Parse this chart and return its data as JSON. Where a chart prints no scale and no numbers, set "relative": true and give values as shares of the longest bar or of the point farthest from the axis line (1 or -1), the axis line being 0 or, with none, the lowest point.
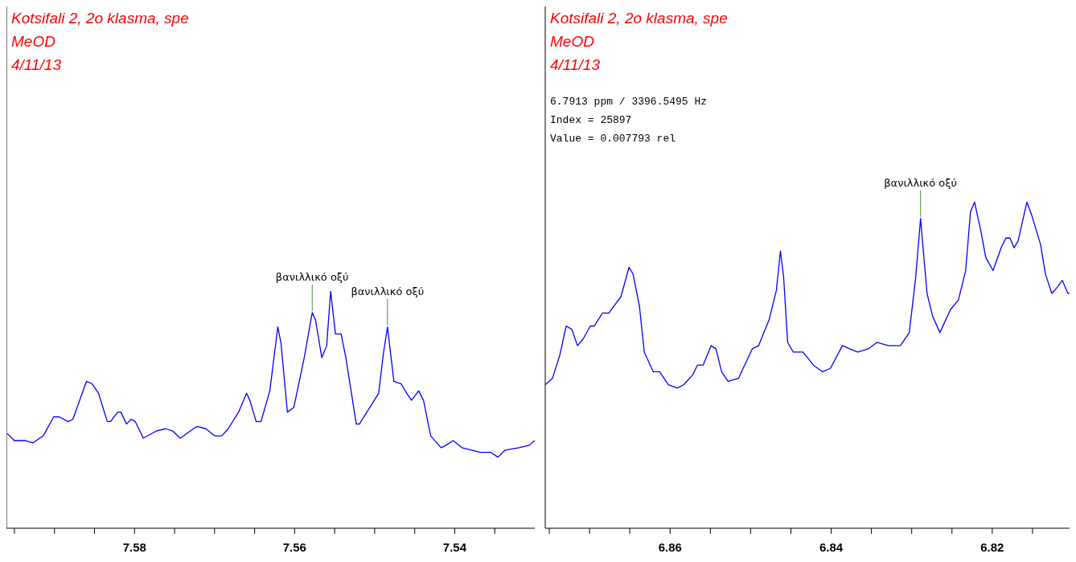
{
  "chart_data": [
    {
      "type": "line",
      "title": "Kotsifali 2, 2o klasma, spe",
      "subtitle": "MeOD\n4/11/13",
      "relative": true,
      "x": [
        7.5959,
        7.595,
        7.5937,
        7.5927,
        7.5914,
        7.5901,
        7.5894,
        7.5883,
        7.5877,
        7.586,
        7.5853,
        7.5845,
        7.5834,
        7.583,
        7.5821,
        7.5817,
        7.581,
        7.5804,
        7.5799,
        7.5789,
        7.5773,
        7.5761,
        7.5752,
        7.5743,
        7.5722,
        7.5711,
        7.57,
        7.5691,
        7.5683,
        7.567,
        7.566,
        7.5656,
        7.5648,
        7.5642,
        7.5631,
        7.5621,
        7.5617,
        7.5609,
        7.5601,
        7.5588,
        7.5578,
        7.5574,
        7.5566,
        7.556,
        7.5555,
        7.5549,
        7.5542,
        7.5536,
        7.5523,
        7.5519,
        7.5495,
        7.5489,
        7.5484,
        7.5476,
        7.5467,
        7.546,
        7.5454,
        7.5445,
        7.5439,
        7.543,
        7.5417,
        7.5411,
        7.5402,
        7.5391,
        7.5368,
        7.5355,
        7.5346,
        7.5337,
        7.532,
        7.5307,
        7.53
      ],
      "series": [
        {
          "color": "#0000ff",
          "values": [
            0.4,
            0.37,
            0.37,
            0.36,
            0.39,
            0.47,
            0.47,
            0.45,
            0.46,
            0.62,
            0.61,
            0.57,
            0.45,
            0.45,
            0.49,
            0.49,
            0.44,
            0.46,
            0.45,
            0.38,
            0.41,
            0.42,
            0.41,
            0.38,
            0.43,
            0.42,
            0.39,
            0.39,
            0.42,
            0.49,
            0.57,
            0.54,
            0.45,
            0.45,
            0.58,
            0.85,
            0.78,
            0.49,
            0.51,
            0.72,
            0.91,
            0.88,
            0.72,
            0.77,
            1.0,
            0.82,
            0.82,
            0.72,
            0.44,
            0.44,
            0.57,
            0.74,
            0.85,
            0.62,
            0.61,
            0.57,
            0.54,
            0.58,
            0.54,
            0.39,
            0.34,
            0.35,
            0.37,
            0.34,
            0.32,
            0.32,
            0.3,
            0.33,
            0.34,
            0.35,
            0.37
          ]
        }
      ],
      "xlim": [
        7.596,
        7.53
      ],
      "xticks": [
        {
          "value": 7.595,
          "label": null
        },
        {
          "value": 7.59,
          "label": null
        },
        {
          "value": 7.585,
          "label": null
        },
        {
          "value": 7.58,
          "label": "7.58"
        },
        {
          "value": 7.575,
          "label": null
        },
        {
          "value": 7.57,
          "label": null
        },
        {
          "value": 7.565,
          "label": null
        },
        {
          "value": 7.56,
          "label": "7.56"
        },
        {
          "value": 7.555,
          "label": null
        },
        {
          "value": 7.55,
          "label": null
        },
        {
          "value": 7.545,
          "label": null
        },
        {
          "value": 7.54,
          "label": "7.54"
        },
        {
          "value": 7.535,
          "label": null
        }
      ],
      "annotations": [
        {
          "text": "βανιλλικό οξύ",
          "x": 7.5578,
          "y": 0.91
        },
        {
          "text": "βανιλλικό οξύ",
          "x": 7.5484,
          "y": 0.85
        }
      ]
    },
    {
      "type": "line",
      "title": "Kotsifali 2, 2o klasma, spe",
      "subtitle": "MeOD\n4/11/13",
      "relative": true,
      "x": [
        6.8755,
        6.8746,
        6.8737,
        6.8729,
        6.8722,
        6.8715,
        6.8708,
        6.8699,
        6.8694,
        6.8684,
        6.8676,
        6.867,
        6.8661,
        6.8651,
        6.8646,
        6.8638,
        6.8632,
        6.8621,
        6.8613,
        6.8602,
        6.8591,
        6.8583,
        6.8572,
        6.8566,
        6.8559,
        6.8549,
        6.8543,
        6.8536,
        6.8528,
        6.8515,
        6.8498,
        6.849,
        6.8477,
        6.8468,
        6.8463,
        6.8459,
        6.8454,
        6.8447,
        6.8435,
        6.8422,
        6.8411,
        6.8401,
        6.8386,
        6.8377,
        6.8367,
        6.8354,
        6.8343,
        6.8329,
        6.8314,
        6.8303,
        6.8295,
        6.8289,
        6.8281,
        6.8274,
        6.8265,
        6.8252,
        6.8242,
        6.8233,
        6.8227,
        6.8222,
        6.8214,
        6.8208,
        6.8199,
        6.8189,
        6.8183,
        6.8178,
        6.8173,
        6.8168,
        6.8157,
        6.8151,
        6.814,
        6.8134,
        6.8126,
        6.8119,
        6.8113,
        6.8106,
        6.8101
      ],
      "series": [
        {
          "color": "#0000ff",
          "values": [
            0.44,
            0.46,
            0.53,
            0.62,
            0.61,
            0.56,
            0.58,
            0.62,
            0.62,
            0.66,
            0.66,
            0.68,
            0.71,
            0.8,
            0.78,
            0.68,
            0.54,
            0.48,
            0.48,
            0.44,
            0.43,
            0.44,
            0.47,
            0.5,
            0.5,
            0.56,
            0.55,
            0.48,
            0.45,
            0.46,
            0.55,
            0.56,
            0.64,
            0.73,
            0.85,
            0.77,
            0.57,
            0.54,
            0.54,
            0.5,
            0.48,
            0.49,
            0.56,
            0.55,
            0.54,
            0.55,
            0.57,
            0.56,
            0.56,
            0.6,
            0.77,
            0.95,
            0.72,
            0.65,
            0.6,
            0.67,
            0.7,
            0.79,
            0.97,
            1.0,
            0.91,
            0.83,
            0.79,
            0.86,
            0.89,
            0.89,
            0.86,
            0.88,
            1.0,
            0.96,
            0.87,
            0.78,
            0.72,
            0.74,
            0.76,
            0.72,
            0.72
          ]
        }
      ],
      "xlim": [
        6.8755,
        6.81
      ],
      "xticks": [
        {
          "value": 6.875,
          "label": null
        },
        {
          "value": 6.87,
          "label": null
        },
        {
          "value": 6.865,
          "label": null
        },
        {
          "value": 6.86,
          "label": "6.86"
        },
        {
          "value": 6.855,
          "label": null
        },
        {
          "value": 6.85,
          "label": null
        },
        {
          "value": 6.845,
          "label": null
        },
        {
          "value": 6.84,
          "label": "6.84"
        },
        {
          "value": 6.835,
          "label": null
        },
        {
          "value": 6.83,
          "label": null
        },
        {
          "value": 6.825,
          "label": null
        },
        {
          "value": 6.82,
          "label": "6.82"
        },
        {
          "value": 6.815,
          "label": null
        }
      ],
      "annotations": [
        "6.7913 ppm / 3396.5495 Hz",
        "Index = 25897",
        "Value = 0.007793   rel",
        {
          "text": "βανιλλικό οξύ",
          "x": 6.8289,
          "y": 0.95
        }
      ]
    }
  ]
}
